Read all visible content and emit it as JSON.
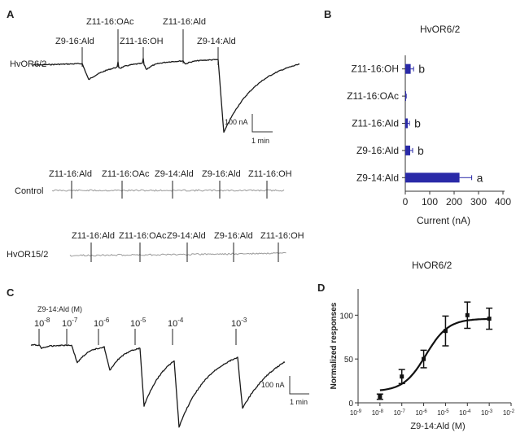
{
  "panels": {
    "A": {
      "label": "A",
      "trace_label": "HvOR6/2",
      "odors": [
        "Z9-16:Ald",
        "Z11-16:OAc",
        "Z11-16:OH",
        "Z11-16:Ald",
        "Z9-14:Ald"
      ],
      "scale_current": "100 nA",
      "scale_time": "1 min",
      "control": {
        "label": "Control",
        "odors": [
          "Z11-16:Ald",
          "Z11-16:OAc",
          "Z9-14:Ald",
          "Z9-16:Ald",
          "Z11-16:OH"
        ]
      },
      "or15": {
        "label": "HvOR15/2",
        "odors": [
          "Z11-16:Ald",
          "Z11-16:OAc",
          "Z9-14:Ald",
          "Z9-16:Ald",
          "Z11-16:OH"
        ]
      }
    },
    "C": {
      "label": "C",
      "odor_label": "Z9-14:Ald  (M)",
      "conc_exponents": [
        "-8",
        "-7",
        "-6",
        "-5",
        "-4",
        "-3"
      ],
      "scale_current": "100 nA",
      "scale_time": "1 min"
    }
  },
  "chart_data": [
    {
      "type": "bar",
      "panel": "B",
      "title": "HvOR6/2",
      "orientation": "horizontal",
      "categories": [
        "Z11-16:OH",
        "Z11-16:OAc",
        "Z11-16:Ald",
        "Z9-16:Ald",
        "Z9-14:Ald"
      ],
      "values": [
        22,
        2,
        10,
        20,
        222
      ],
      "errors": [
        12,
        2,
        7,
        10,
        50
      ],
      "significance": [
        "b",
        "",
        "b",
        "b",
        "a"
      ],
      "xlabel": "Current (nA)",
      "xlim": [
        0,
        450
      ],
      "xticks": [
        "0",
        "100",
        "200",
        "300",
        "400"
      ],
      "bar_color": "#2a2aa8",
      "grid": false
    },
    {
      "type": "scatter",
      "panel": "D",
      "title": "HvOR6/2",
      "log_x": true,
      "x": [
        1e-08,
        1e-07,
        1e-06,
        1e-05,
        0.0001,
        0.001
      ],
      "values": [
        7,
        30,
        50,
        82,
        100,
        96
      ],
      "errors": [
        3,
        8,
        10,
        17,
        15,
        12
      ],
      "fit_curve": {
        "bottom": 13,
        "top": 96,
        "log_ec50": -5.9,
        "hill": 0.85
      },
      "xlabel": "Z9-14:Ald (M)",
      "ylabel": "Normalized responses",
      "xticks": [
        "-9",
        "-8",
        "-7",
        "-6",
        "-5",
        "-4",
        "-3",
        "-2"
      ],
      "yticks": [
        "0",
        "50",
        "100"
      ],
      "ylim": [
        0,
        130
      ],
      "xlim": [
        -9,
        -2
      ],
      "grid": false
    }
  ]
}
